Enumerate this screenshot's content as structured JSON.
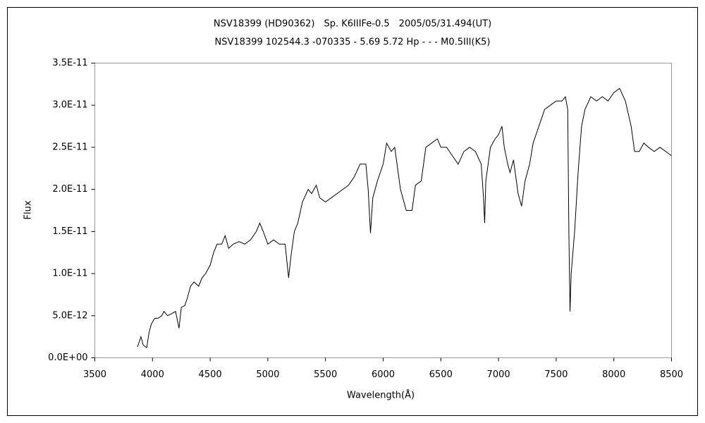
{
  "chart_data": {
    "type": "line",
    "title": "NSV18399 (HD90362)　Sp. K6IIIFe-0.5　2005/05/31.494(UT)",
    "subtitle": "NSV18399 102544.3 -070335 - 5.69 5.72 Hp - - - M0.5III(K5)",
    "xlabel": "Wavelength(Å)",
    "ylabel": "Flux",
    "color": "#000000",
    "grid": false,
    "xlim": [
      3500,
      8500
    ],
    "xticks": [
      3500,
      4000,
      4500,
      5000,
      5500,
      6000,
      6500,
      7000,
      7500,
      8000,
      8500
    ],
    "ylim": [
      0,
      3.5e-11
    ],
    "yticks": [
      {
        "value": 0,
        "label": "0.0E+00"
      },
      {
        "value": 5e-12,
        "label": "5.0E-12"
      },
      {
        "value": 1e-11,
        "label": "1.0E-11"
      },
      {
        "value": 1.5e-11,
        "label": "1.5E-11"
      },
      {
        "value": 2e-11,
        "label": "2.0E-11"
      },
      {
        "value": 2.5e-11,
        "label": "2.5E-11"
      },
      {
        "value": 3e-11,
        "label": "3.0E-11"
      },
      {
        "value": 3.5e-11,
        "label": "3.5E-11"
      }
    ],
    "x": [
      3870,
      3900,
      3920,
      3950,
      3970,
      3990,
      4020,
      4050,
      4080,
      4100,
      4130,
      4160,
      4200,
      4230,
      4250,
      4280,
      4300,
      4330,
      4360,
      4400,
      4430,
      4460,
      4500,
      4530,
      4560,
      4600,
      4630,
      4660,
      4700,
      4750,
      4800,
      4850,
      4900,
      4930,
      4960,
      5000,
      5050,
      5100,
      5150,
      5180,
      5200,
      5230,
      5260,
      5300,
      5350,
      5380,
      5420,
      5450,
      5500,
      5550,
      5600,
      5650,
      5700,
      5750,
      5800,
      5850,
      5870,
      5890,
      5910,
      5950,
      6000,
      6030,
      6070,
      6100,
      6150,
      6200,
      6250,
      6280,
      6330,
      6370,
      6420,
      6470,
      6500,
      6550,
      6600,
      6650,
      6700,
      6750,
      6800,
      6850,
      6870,
      6880,
      6890,
      6930,
      6970,
      7000,
      7030,
      7050,
      7080,
      7100,
      7130,
      7170,
      7200,
      7230,
      7270,
      7300,
      7350,
      7400,
      7450,
      7500,
      7550,
      7580,
      7600,
      7610,
      7620,
      7630,
      7660,
      7690,
      7720,
      7750,
      7800,
      7850,
      7900,
      7950,
      8000,
      8050,
      8100,
      8150,
      8180,
      8220,
      8260,
      8300,
      8350,
      8400,
      8450,
      8500
    ],
    "values": [
      1.3e-12,
      2.5e-12,
      1.5e-12,
      1.2e-12,
      3e-12,
      4e-12,
      4.7e-12,
      4.7e-12,
      5e-12,
      5.5e-12,
      5e-12,
      5.2e-12,
      5.5e-12,
      3.5e-12,
      6e-12,
      6.2e-12,
      7e-12,
      8.5e-12,
      9e-12,
      8.5e-12,
      9.5e-12,
      1e-11,
      1.1e-11,
      1.25e-11,
      1.35e-11,
      1.35e-11,
      1.45e-11,
      1.3e-11,
      1.35e-11,
      1.38e-11,
      1.35e-11,
      1.4e-11,
      1.5e-11,
      1.6e-11,
      1.5e-11,
      1.35e-11,
      1.4e-11,
      1.35e-11,
      1.35e-11,
      9.5e-12,
      1.2e-11,
      1.5e-11,
      1.6e-11,
      1.85e-11,
      2e-11,
      1.95e-11,
      2.05e-11,
      1.9e-11,
      1.85e-11,
      1.9e-11,
      1.95e-11,
      2e-11,
      2.05e-11,
      2.15e-11,
      2.3e-11,
      2.3e-11,
      2e-11,
      1.48e-11,
      1.9e-11,
      2.1e-11,
      2.3e-11,
      2.55e-11,
      2.45e-11,
      2.5e-11,
      2e-11,
      1.75e-11,
      1.75e-11,
      2.05e-11,
      2.1e-11,
      2.5e-11,
      2.55e-11,
      2.6e-11,
      2.5e-11,
      2.5e-11,
      2.4e-11,
      2.3e-11,
      2.45e-11,
      2.5e-11,
      2.45e-11,
      2.3e-11,
      1.9e-11,
      1.6e-11,
      2.1e-11,
      2.5e-11,
      2.6e-11,
      2.65e-11,
      2.75e-11,
      2.5e-11,
      2.3e-11,
      2.2e-11,
      2.35e-11,
      1.95e-11,
      1.8e-11,
      2.1e-11,
      2.3e-11,
      2.55e-11,
      2.75e-11,
      2.95e-11,
      3e-11,
      3.05e-11,
      3.05e-11,
      3.1e-11,
      2.95e-11,
      1.5e-11,
      5.5e-12,
      1e-11,
      1.5e-11,
      2.2e-11,
      2.75e-11,
      2.95e-11,
      3.1e-11,
      3.05e-11,
      3.1e-11,
      3.05e-11,
      3.15e-11,
      3.2e-11,
      3.05e-11,
      2.75e-11,
      2.45e-11,
      2.45e-11,
      2.55e-11,
      2.5e-11,
      2.45e-11,
      2.5e-11,
      2.45e-11,
      2.4e-11
    ]
  }
}
